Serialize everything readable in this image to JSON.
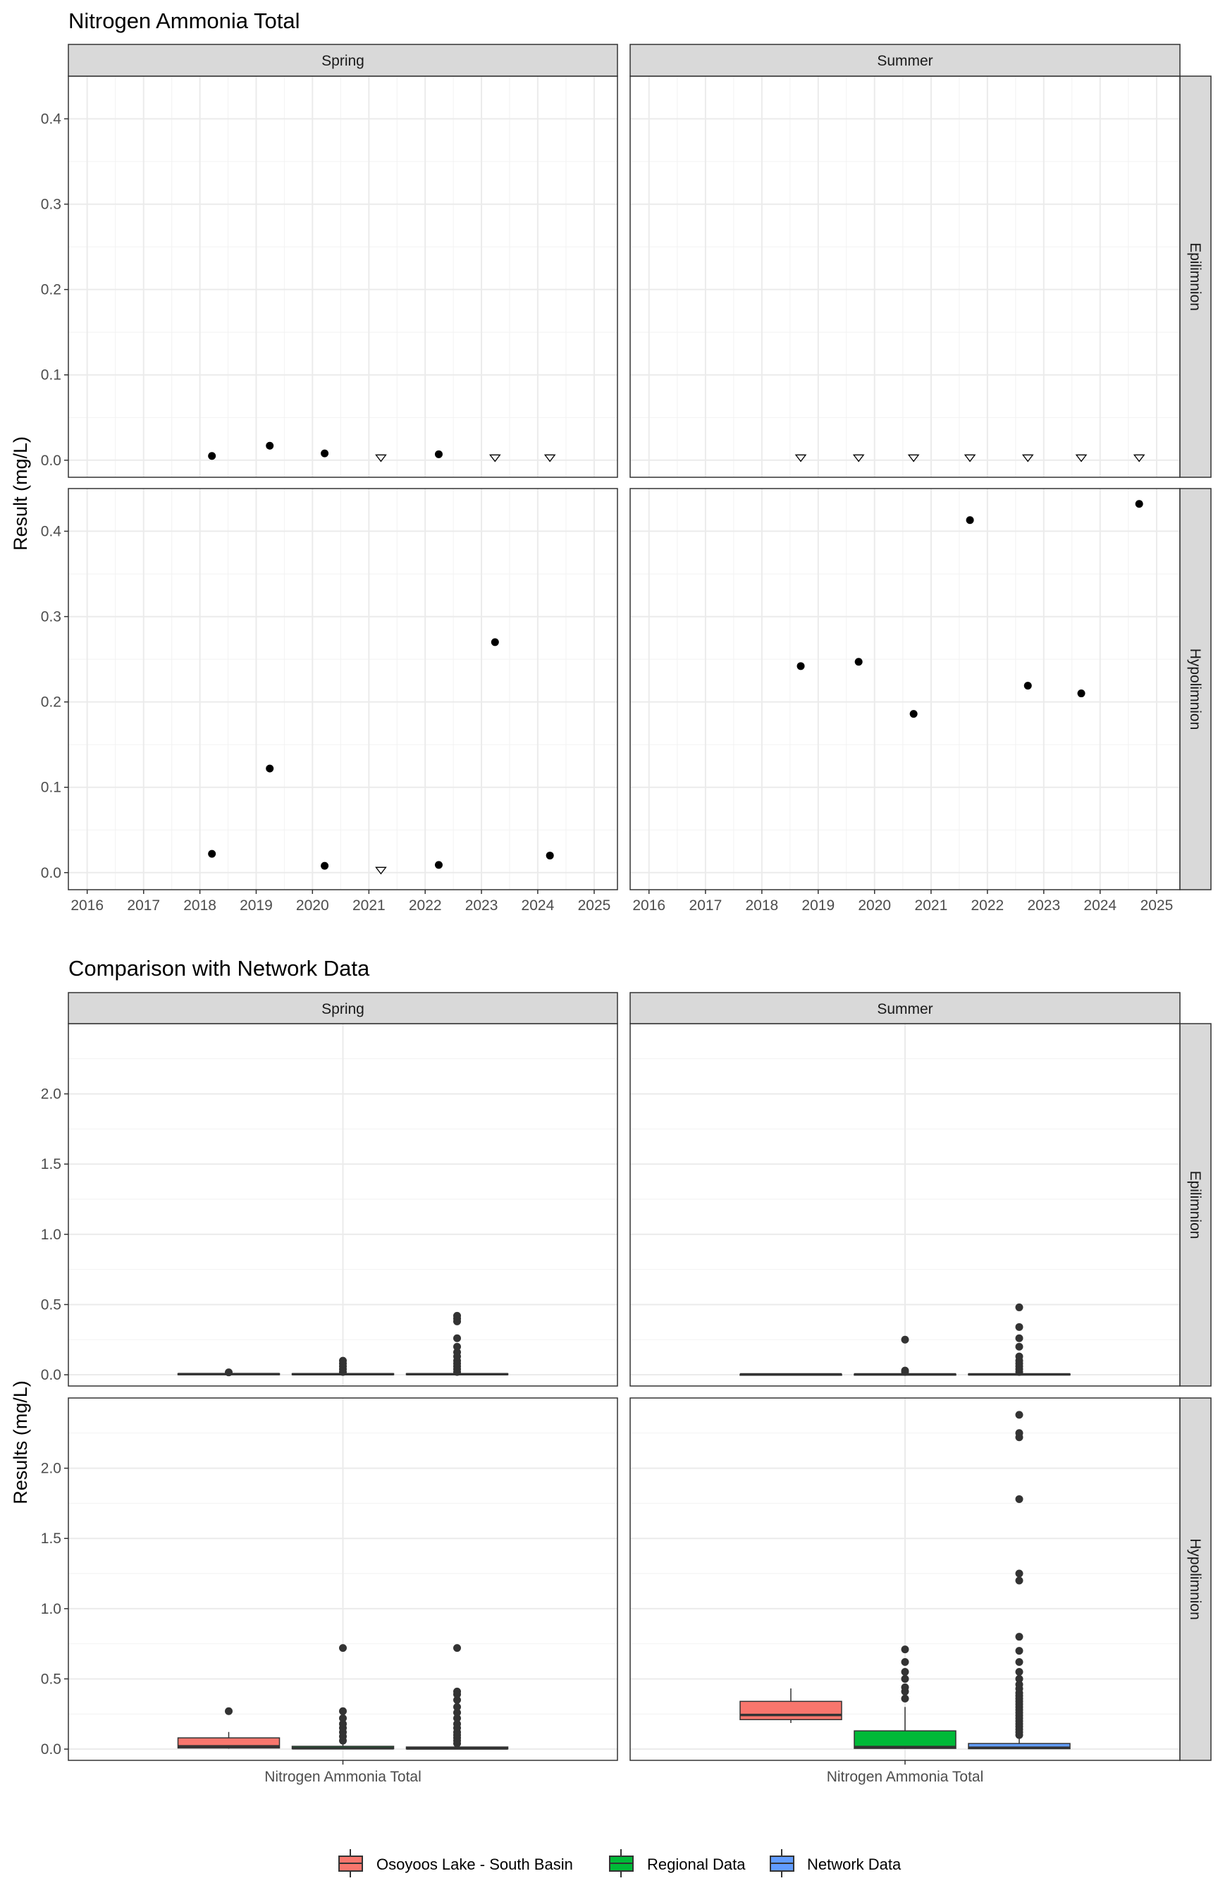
{
  "chart_data": [
    {
      "type": "scatter",
      "title": "Nitrogen Ammonia Total",
      "ylabel": "Result (mg/L)",
      "xlabel": "",
      "ylim": [
        -0.02,
        0.45
      ],
      "yticks": [
        0.0,
        0.1,
        0.2,
        0.3,
        0.4
      ],
      "ytick_labels": [
        "0.0",
        "0.1",
        "0.2",
        "0.3",
        "0.4"
      ],
      "xlim": [
        "2015-09-01",
        "2025-06-01"
      ],
      "xticks": [
        "2016-01-01",
        "2017-01-01",
        "2018-01-01",
        "2019-01-01",
        "2020-01-01",
        "2021-01-01",
        "2022-01-01",
        "2023-01-01",
        "2024-01-01",
        "2025-01-01"
      ],
      "xtick_labels": [
        "2016",
        "2017",
        "2018",
        "2019",
        "2020",
        "2021",
        "2022",
        "2023",
        "2024",
        "2025"
      ],
      "grid": true,
      "columns": [
        "Spring",
        "Summer"
      ],
      "rows": [
        "Epilimnion",
        "Hypolimnion"
      ],
      "marker_types": [
        "detected",
        "below detection"
      ],
      "panels": [
        {
          "col": "Spring",
          "row": "Epilimnion",
          "points": [
            {
              "date": "2018-03-20",
              "value": 0.005,
              "marker": "detected"
            },
            {
              "date": "2019-03-30",
              "value": 0.017,
              "marker": "detected"
            },
            {
              "date": "2020-03-20",
              "value": 0.008,
              "marker": "detected"
            },
            {
              "date": "2021-03-20",
              "value": 0.003,
              "marker": "below detection"
            },
            {
              "date": "2022-03-30",
              "value": 0.007,
              "marker": "detected"
            },
            {
              "date": "2023-03-30",
              "value": 0.003,
              "marker": "below detection"
            },
            {
              "date": "2024-03-20",
              "value": 0.003,
              "marker": "below detection"
            }
          ]
        },
        {
          "col": "Summer",
          "row": "Epilimnion",
          "points": [
            {
              "date": "2018-09-10",
              "value": 0.003,
              "marker": "below detection"
            },
            {
              "date": "2019-09-20",
              "value": 0.003,
              "marker": "below detection"
            },
            {
              "date": "2020-09-10",
              "value": 0.003,
              "marker": "below detection"
            },
            {
              "date": "2021-09-10",
              "value": 0.003,
              "marker": "below detection"
            },
            {
              "date": "2022-09-20",
              "value": 0.003,
              "marker": "below detection"
            },
            {
              "date": "2023-09-01",
              "value": 0.003,
              "marker": "below detection"
            },
            {
              "date": "2024-09-10",
              "value": 0.003,
              "marker": "below detection"
            }
          ]
        },
        {
          "col": "Spring",
          "row": "Hypolimnion",
          "points": [
            {
              "date": "2018-03-20",
              "value": 0.022,
              "marker": "detected"
            },
            {
              "date": "2019-03-30",
              "value": 0.122,
              "marker": "detected"
            },
            {
              "date": "2020-03-20",
              "value": 0.008,
              "marker": "detected"
            },
            {
              "date": "2021-03-20",
              "value": 0.003,
              "marker": "below detection"
            },
            {
              "date": "2022-03-30",
              "value": 0.009,
              "marker": "detected"
            },
            {
              "date": "2023-03-30",
              "value": 0.27,
              "marker": "detected"
            },
            {
              "date": "2024-03-20",
              "value": 0.02,
              "marker": "detected"
            }
          ]
        },
        {
          "col": "Summer",
          "row": "Hypolimnion",
          "points": [
            {
              "date": "2018-09-10",
              "value": 0.242,
              "marker": "detected"
            },
            {
              "date": "2019-09-20",
              "value": 0.247,
              "marker": "detected"
            },
            {
              "date": "2020-09-10",
              "value": 0.186,
              "marker": "detected"
            },
            {
              "date": "2021-09-10",
              "value": 0.413,
              "marker": "detected"
            },
            {
              "date": "2022-09-20",
              "value": 0.219,
              "marker": "detected"
            },
            {
              "date": "2023-09-01",
              "value": 0.21,
              "marker": "detected"
            },
            {
              "date": "2024-09-10",
              "value": 0.432,
              "marker": "detected"
            }
          ]
        }
      ]
    },
    {
      "type": "boxplot",
      "title": "Comparison with Network Data",
      "ylabel": "Results (mg/L)",
      "ylim": [
        -0.08,
        2.5
      ],
      "yticks": [
        0.0,
        0.5,
        1.0,
        1.5,
        2.0
      ],
      "ytick_labels": [
        "0.0",
        "0.5",
        "1.0",
        "1.5",
        "2.0"
      ],
      "category_label": "Nitrogen Ammonia Total",
      "grid": true,
      "columns": [
        "Spring",
        "Summer"
      ],
      "rows": [
        "Epilimnion",
        "Hypolimnion"
      ],
      "legend_position": "bottom",
      "series": [
        {
          "name": "Osoyoos Lake - South Basin",
          "color": "#f8766d"
        },
        {
          "name": "Regional Data",
          "color": "#00ba38"
        },
        {
          "name": "Network Data",
          "color": "#619cff"
        }
      ],
      "panels": [
        {
          "col": "Spring",
          "row": "Epilimnion",
          "boxes": [
            {
              "series": "Osoyoos Lake - South Basin",
              "q1": 0.003,
              "median": 0.005,
              "q3": 0.008,
              "whisker_low": 0.003,
              "whisker_high": 0.012,
              "outliers": [
                0.017
              ]
            },
            {
              "series": "Regional Data",
              "q1": 0.002,
              "median": 0.004,
              "q3": 0.008,
              "whisker_low": 0.002,
              "whisker_high": 0.015,
              "outliers": [
                0.02,
                0.04,
                0.06,
                0.08,
                0.1
              ]
            },
            {
              "series": "Network Data",
              "q1": 0.002,
              "median": 0.004,
              "q3": 0.008,
              "whisker_low": 0.002,
              "whisker_high": 0.015,
              "outliers": [
                0.02,
                0.04,
                0.06,
                0.08,
                0.1,
                0.13,
                0.16,
                0.2,
                0.26,
                0.38,
                0.4,
                0.42
              ]
            }
          ]
        },
        {
          "col": "Summer",
          "row": "Epilimnion",
          "boxes": [
            {
              "series": "Osoyoos Lake - South Basin",
              "q1": 0.003,
              "median": 0.003,
              "q3": 0.004,
              "whisker_low": 0.003,
              "whisker_high": 0.004,
              "outliers": []
            },
            {
              "series": "Regional Data",
              "q1": 0.002,
              "median": 0.003,
              "q3": 0.005,
              "whisker_low": 0.002,
              "whisker_high": 0.01,
              "outliers": [
                0.02,
                0.03,
                0.25
              ]
            },
            {
              "series": "Network Data",
              "q1": 0.002,
              "median": 0.003,
              "q3": 0.006,
              "whisker_low": 0.002,
              "whisker_high": 0.012,
              "outliers": [
                0.02,
                0.04,
                0.06,
                0.08,
                0.1,
                0.13,
                0.2,
                0.26,
                0.34,
                0.48
              ]
            }
          ]
        },
        {
          "col": "Spring",
          "row": "Hypolimnion",
          "boxes": [
            {
              "series": "Osoyoos Lake - South Basin",
              "q1": 0.008,
              "median": 0.02,
              "q3": 0.08,
              "whisker_low": 0.003,
              "whisker_high": 0.122,
              "outliers": [
                0.27
              ]
            },
            {
              "series": "Regional Data",
              "q1": 0.003,
              "median": 0.006,
              "q3": 0.02,
              "whisker_low": 0.002,
              "whisker_high": 0.04,
              "outliers": [
                0.06,
                0.09,
                0.12,
                0.15,
                0.18,
                0.22,
                0.27,
                0.72
              ]
            },
            {
              "series": "Network Data",
              "q1": 0.002,
              "median": 0.005,
              "q3": 0.015,
              "whisker_low": 0.002,
              "whisker_high": 0.03,
              "outliers": [
                0.04,
                0.06,
                0.08,
                0.1,
                0.12,
                0.15,
                0.18,
                0.22,
                0.26,
                0.3,
                0.35,
                0.39,
                0.41,
                0.72
              ]
            }
          ]
        },
        {
          "col": "Summer",
          "row": "Hypolimnion",
          "boxes": [
            {
              "series": "Osoyoos Lake - South Basin",
              "q1": 0.21,
              "median": 0.243,
              "q3": 0.34,
              "whisker_low": 0.186,
              "whisker_high": 0.432,
              "outliers": []
            },
            {
              "series": "Regional Data",
              "q1": 0.005,
              "median": 0.015,
              "q3": 0.13,
              "whisker_low": 0.002,
              "whisker_high": 0.3,
              "outliers": [
                0.36,
                0.41,
                0.44,
                0.5,
                0.55,
                0.62,
                0.71
              ]
            },
            {
              "series": "Network Data",
              "q1": 0.003,
              "median": 0.01,
              "q3": 0.04,
              "whisker_low": 0.002,
              "whisker_high": 0.09,
              "outliers": [
                0.1,
                0.12,
                0.14,
                0.16,
                0.18,
                0.2,
                0.22,
                0.24,
                0.26,
                0.28,
                0.3,
                0.32,
                0.34,
                0.36,
                0.38,
                0.4,
                0.43,
                0.46,
                0.5,
                0.55,
                0.62,
                0.7,
                0.8,
                1.2,
                1.25,
                1.78,
                2.22,
                2.25,
                2.38
              ]
            }
          ]
        }
      ]
    }
  ]
}
